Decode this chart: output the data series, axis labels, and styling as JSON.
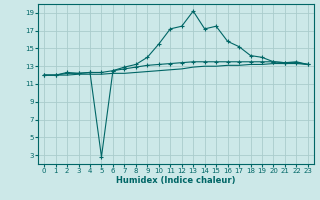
{
  "xlabel": "Humidex (Indice chaleur)",
  "background_color": "#cce8e8",
  "grid_color": "#aacccc",
  "line_color": "#006666",
  "xlim": [
    -0.5,
    23.5
  ],
  "ylim": [
    2.0,
    20.0
  ],
  "yticks": [
    3,
    5,
    7,
    9,
    11,
    13,
    15,
    17,
    19
  ],
  "xticks": [
    0,
    1,
    2,
    3,
    4,
    5,
    6,
    7,
    8,
    9,
    10,
    11,
    12,
    13,
    14,
    15,
    16,
    17,
    18,
    19,
    20,
    21,
    22,
    23
  ],
  "series1": {
    "x": [
      0,
      1,
      2,
      3,
      4,
      5,
      6,
      7,
      8,
      9,
      10,
      11,
      12,
      13,
      14,
      15,
      16,
      17,
      18,
      19,
      20,
      21,
      22,
      23
    ],
    "y": [
      12.0,
      12.0,
      12.3,
      12.2,
      12.3,
      2.8,
      12.5,
      12.9,
      13.2,
      14.0,
      15.5,
      17.2,
      17.5,
      19.2,
      17.2,
      17.5,
      15.8,
      15.2,
      14.2,
      14.0,
      13.5,
      13.4,
      13.5,
      13.2
    ]
  },
  "series2": {
    "x": [
      0,
      1,
      2,
      3,
      4,
      5,
      6,
      7,
      8,
      9,
      10,
      11,
      12,
      13,
      14,
      15,
      16,
      17,
      18,
      19,
      20,
      21,
      22,
      23
    ],
    "y": [
      12.0,
      12.0,
      12.2,
      12.2,
      12.3,
      12.3,
      12.5,
      12.7,
      12.9,
      13.1,
      13.2,
      13.3,
      13.4,
      13.5,
      13.5,
      13.5,
      13.5,
      13.5,
      13.5,
      13.5,
      13.5,
      13.4,
      13.4,
      13.2
    ]
  },
  "series3": {
    "x": [
      0,
      1,
      2,
      3,
      4,
      5,
      6,
      7,
      8,
      9,
      10,
      11,
      12,
      13,
      14,
      15,
      16,
      17,
      18,
      19,
      20,
      21,
      22,
      23
    ],
    "y": [
      12.0,
      12.0,
      12.0,
      12.1,
      12.1,
      12.1,
      12.2,
      12.2,
      12.3,
      12.4,
      12.5,
      12.6,
      12.7,
      12.9,
      13.0,
      13.0,
      13.1,
      13.1,
      13.2,
      13.2,
      13.3,
      13.3,
      13.3,
      13.2
    ]
  }
}
